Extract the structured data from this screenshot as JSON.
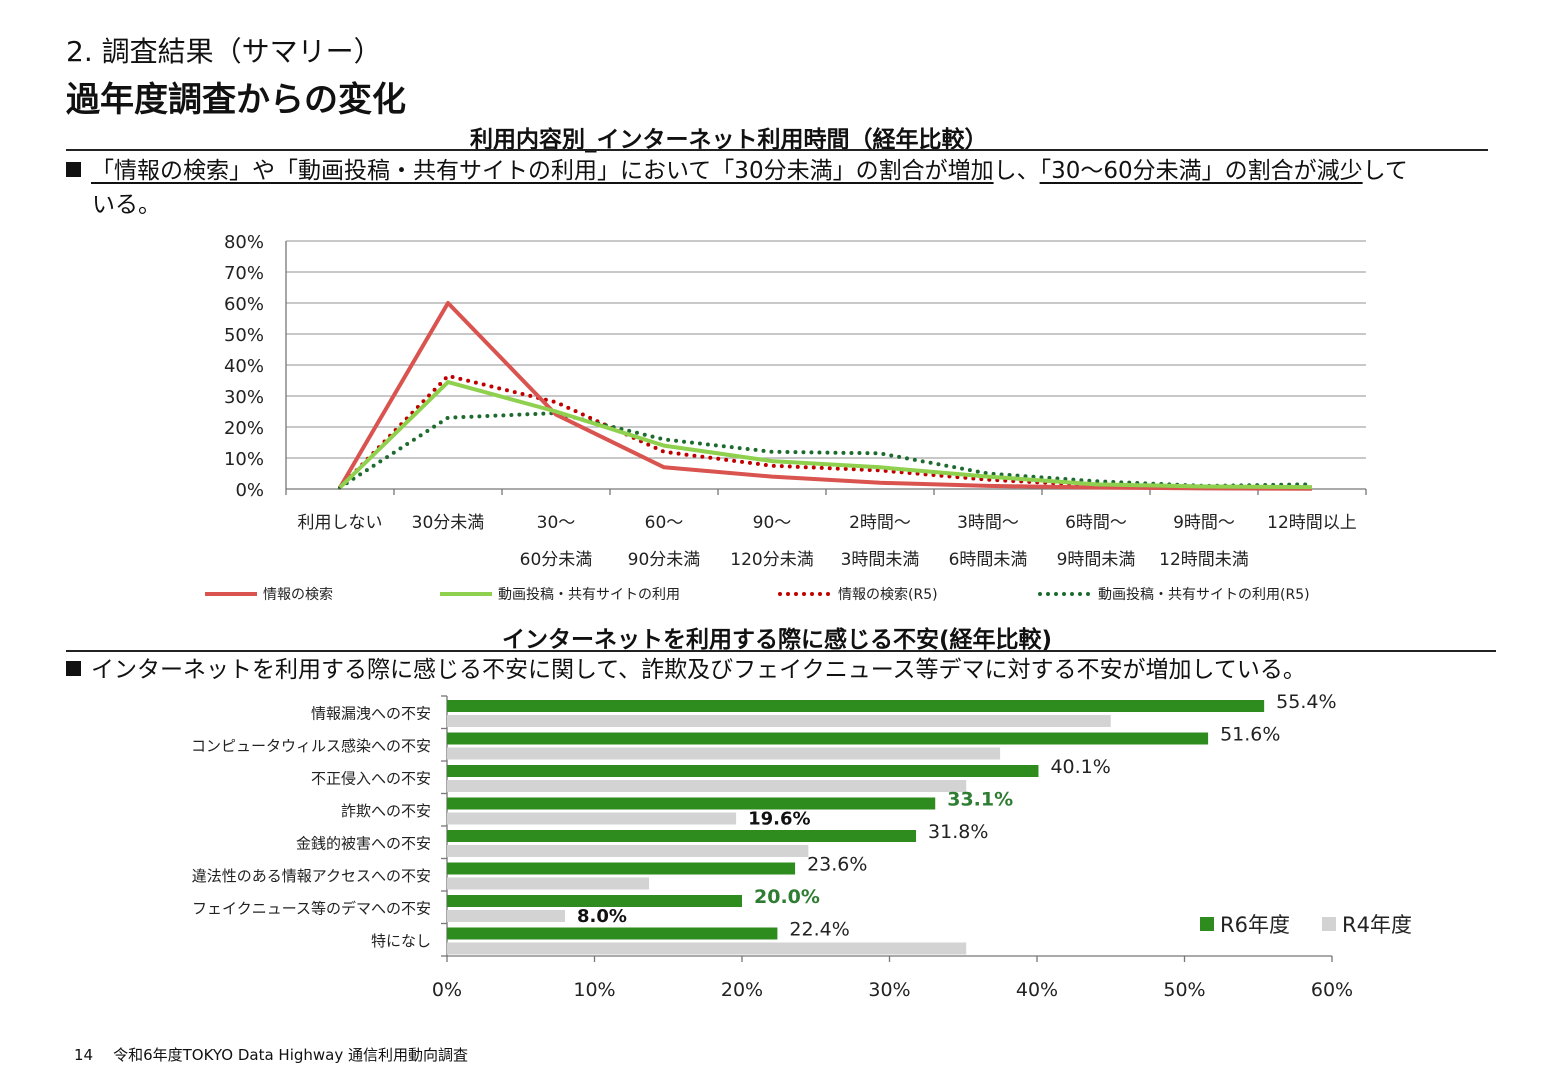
{
  "header": {
    "section": "2. 調査結果（サマリー）",
    "title": "過年度調査からの変化"
  },
  "summary_1": {
    "line1": [
      {
        "text": "「情報の検索」や「動画投稿・共有サイトの利用」において「30分未満」の割合が増加",
        "underline": true
      },
      {
        "text": "し、",
        "underline": false
      },
      {
        "text": "「30〜60分未満」の割合が減少",
        "underline": true
      },
      {
        "text": "して",
        "underline": false
      }
    ],
    "line2": "いる。"
  },
  "summary_2": "インターネットを利用する際に感じる不安に関して、詐欺及びフェイクニュース等デマに対する不安が増加している。",
  "colors": {
    "search": "#d9534f",
    "video": "#8fd14f",
    "search_r5": "#c00000",
    "video_r5": "#1e6b30",
    "r6": "#2e8b1e",
    "r4": "#d3d3d3",
    "highlight_label": "#2e7d32",
    "grid": "#a6a6a6"
  },
  "chart_data": [
    {
      "type": "line",
      "title": "利用内容別_インターネット利用時間（経年比較）",
      "categories": [
        [
          "利用しない"
        ],
        [
          "30分未満"
        ],
        [
          "30〜",
          "60分未満"
        ],
        [
          "60〜",
          "90分未満"
        ],
        [
          "90〜",
          "120分未満"
        ],
        [
          "2時間〜",
          "3時間未満"
        ],
        [
          "3時間〜",
          "6時間未満"
        ],
        [
          "6時間〜",
          "9時間未満"
        ],
        [
          "9時間〜",
          "12時間未満"
        ],
        [
          "12時間以上"
        ]
      ],
      "ylim": [
        0,
        80
      ],
      "yticks": [
        "0%",
        "10%",
        "20%",
        "30%",
        "40%",
        "50%",
        "60%",
        "70%",
        "80%"
      ],
      "grid": true,
      "legend_position": "bottom",
      "series": [
        {
          "name": "情報の検索",
          "style": "solid",
          "color_key": "search",
          "values": [
            0.5,
            60,
            24,
            7,
            4,
            2,
            1,
            0.5,
            0.2,
            0.1
          ]
        },
        {
          "name": "動画投稿・共有サイトの利用",
          "style": "solid",
          "color_key": "video",
          "values": [
            0.5,
            34.5,
            25,
            14,
            9,
            7,
            4,
            1.5,
            0.8,
            0.6
          ]
        },
        {
          "name": "情報の検索(R5)",
          "style": "dotted",
          "color_key": "search_r5",
          "values": [
            0.5,
            36.5,
            28,
            12,
            7.5,
            6,
            3,
            1.2,
            0.5,
            0.3
          ]
        },
        {
          "name": "動画投稿・共有サイトの利用(R5)",
          "style": "dotted",
          "color_key": "video_r5",
          "values": [
            0.5,
            23,
            24.5,
            16,
            12,
            11.5,
            5,
            2.5,
            1,
            1.5
          ]
        }
      ]
    },
    {
      "type": "bar",
      "orientation": "horizontal",
      "title": "インターネットを利用する際に感じる不安(経年比較)",
      "categories": [
        "情報漏洩への不安",
        "コンピュータウィルス感染への不安",
        "不正侵入への不安",
        "詐欺への不安",
        "金銭的被害への不安",
        "違法性のある情報アクセスへの不安",
        "フェイクニュース等のデマへの不安",
        "特になし"
      ],
      "xlim": [
        0,
        60
      ],
      "xticks": [
        "0%",
        "10%",
        "20%",
        "30%",
        "40%",
        "50%",
        "60%"
      ],
      "legend_position": "bottom-right",
      "series": [
        {
          "name": "R6年度",
          "color_key": "r6",
          "values": [
            55.4,
            51.6,
            40.1,
            33.1,
            31.8,
            23.6,
            20.0,
            22.4
          ],
          "labels": [
            "55.4%",
            "51.6%",
            "40.1%",
            "33.1%",
            "31.8%",
            "23.6%",
            "20.0%",
            "22.4%"
          ],
          "highlight": [
            false,
            false,
            false,
            true,
            false,
            false,
            true,
            false
          ]
        },
        {
          "name": "R4年度",
          "color_key": "r4",
          "values": [
            45,
            37.5,
            35.2,
            19.6,
            24.5,
            13.7,
            8.0,
            35.2
          ],
          "labels": [
            "",
            "",
            "",
            "19.6%",
            "",
            "",
            "8.0%",
            ""
          ]
        }
      ]
    }
  ],
  "footer": {
    "page": "14",
    "text": "令和6年度TOKYO Data Highway 通信利用動向調査"
  }
}
